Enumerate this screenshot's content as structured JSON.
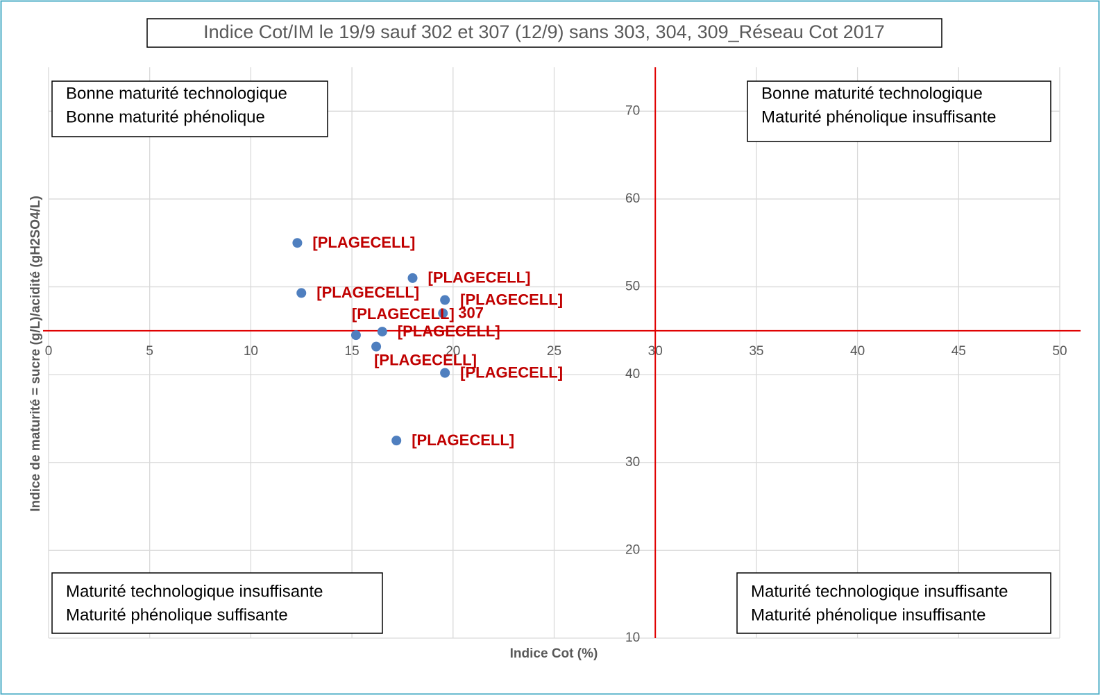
{
  "chart_data": {
    "type": "scatter",
    "title": "Indice Cot/IM le 19/9 sauf 302 et 307 (12/9) sans 303, 304, 309_Réseau Cot 2017",
    "x_label": "Indice Cot (%)",
    "y_label": "Indice de maturité = sucre (g/L)/acidité (gH2SO4/L)",
    "xlim": [
      0,
      50
    ],
    "ylim": [
      10,
      75
    ],
    "xticks": [
      0,
      5,
      10,
      15,
      20,
      25,
      30,
      35,
      40,
      45,
      50
    ],
    "yticks": [
      10,
      20,
      30,
      40,
      50,
      60,
      70
    ],
    "grid": true,
    "x_axis_at_y": 45,
    "y_axis_at_x": 30,
    "axis_color": "#e00000",
    "color": "#4f7fbf",
    "label_color": "#c00000",
    "x": [
      12.3,
      12.5,
      18.0,
      19.6,
      19.5,
      15.2,
      16.5,
      16.2,
      19.6,
      17.2
    ],
    "values": [
      55.0,
      49.3,
      51.0,
      48.5,
      47.0,
      44.5,
      44.9,
      43.2,
      40.2,
      32.5
    ],
    "labels": [
      "[PLAGECELL]",
      "[PLAGECELL]",
      "[PLAGECELL]",
      "[PLAGECELL]",
      "307",
      "[PLAGECELL]",
      "[PLAGECELL]",
      "[PLAGECELL]",
      "[PLAGECELL]",
      "[PLAGECELL]"
    ],
    "label_position": [
      "right",
      "right",
      "right",
      "right",
      "right",
      "above",
      "right",
      "below",
      "right",
      "right"
    ],
    "annotations": [
      [
        "Bonne maturité technologique",
        "Bonne maturité phénolique"
      ],
      [
        "Bonne maturité technologique",
        "Maturité phénolique insuffisante"
      ],
      [
        "Maturité technologique insuffisante",
        "Maturité phénolique suffisante"
      ],
      [
        "Maturité technologique insuffisante",
        "Maturité phénolique insuffisante"
      ]
    ]
  }
}
